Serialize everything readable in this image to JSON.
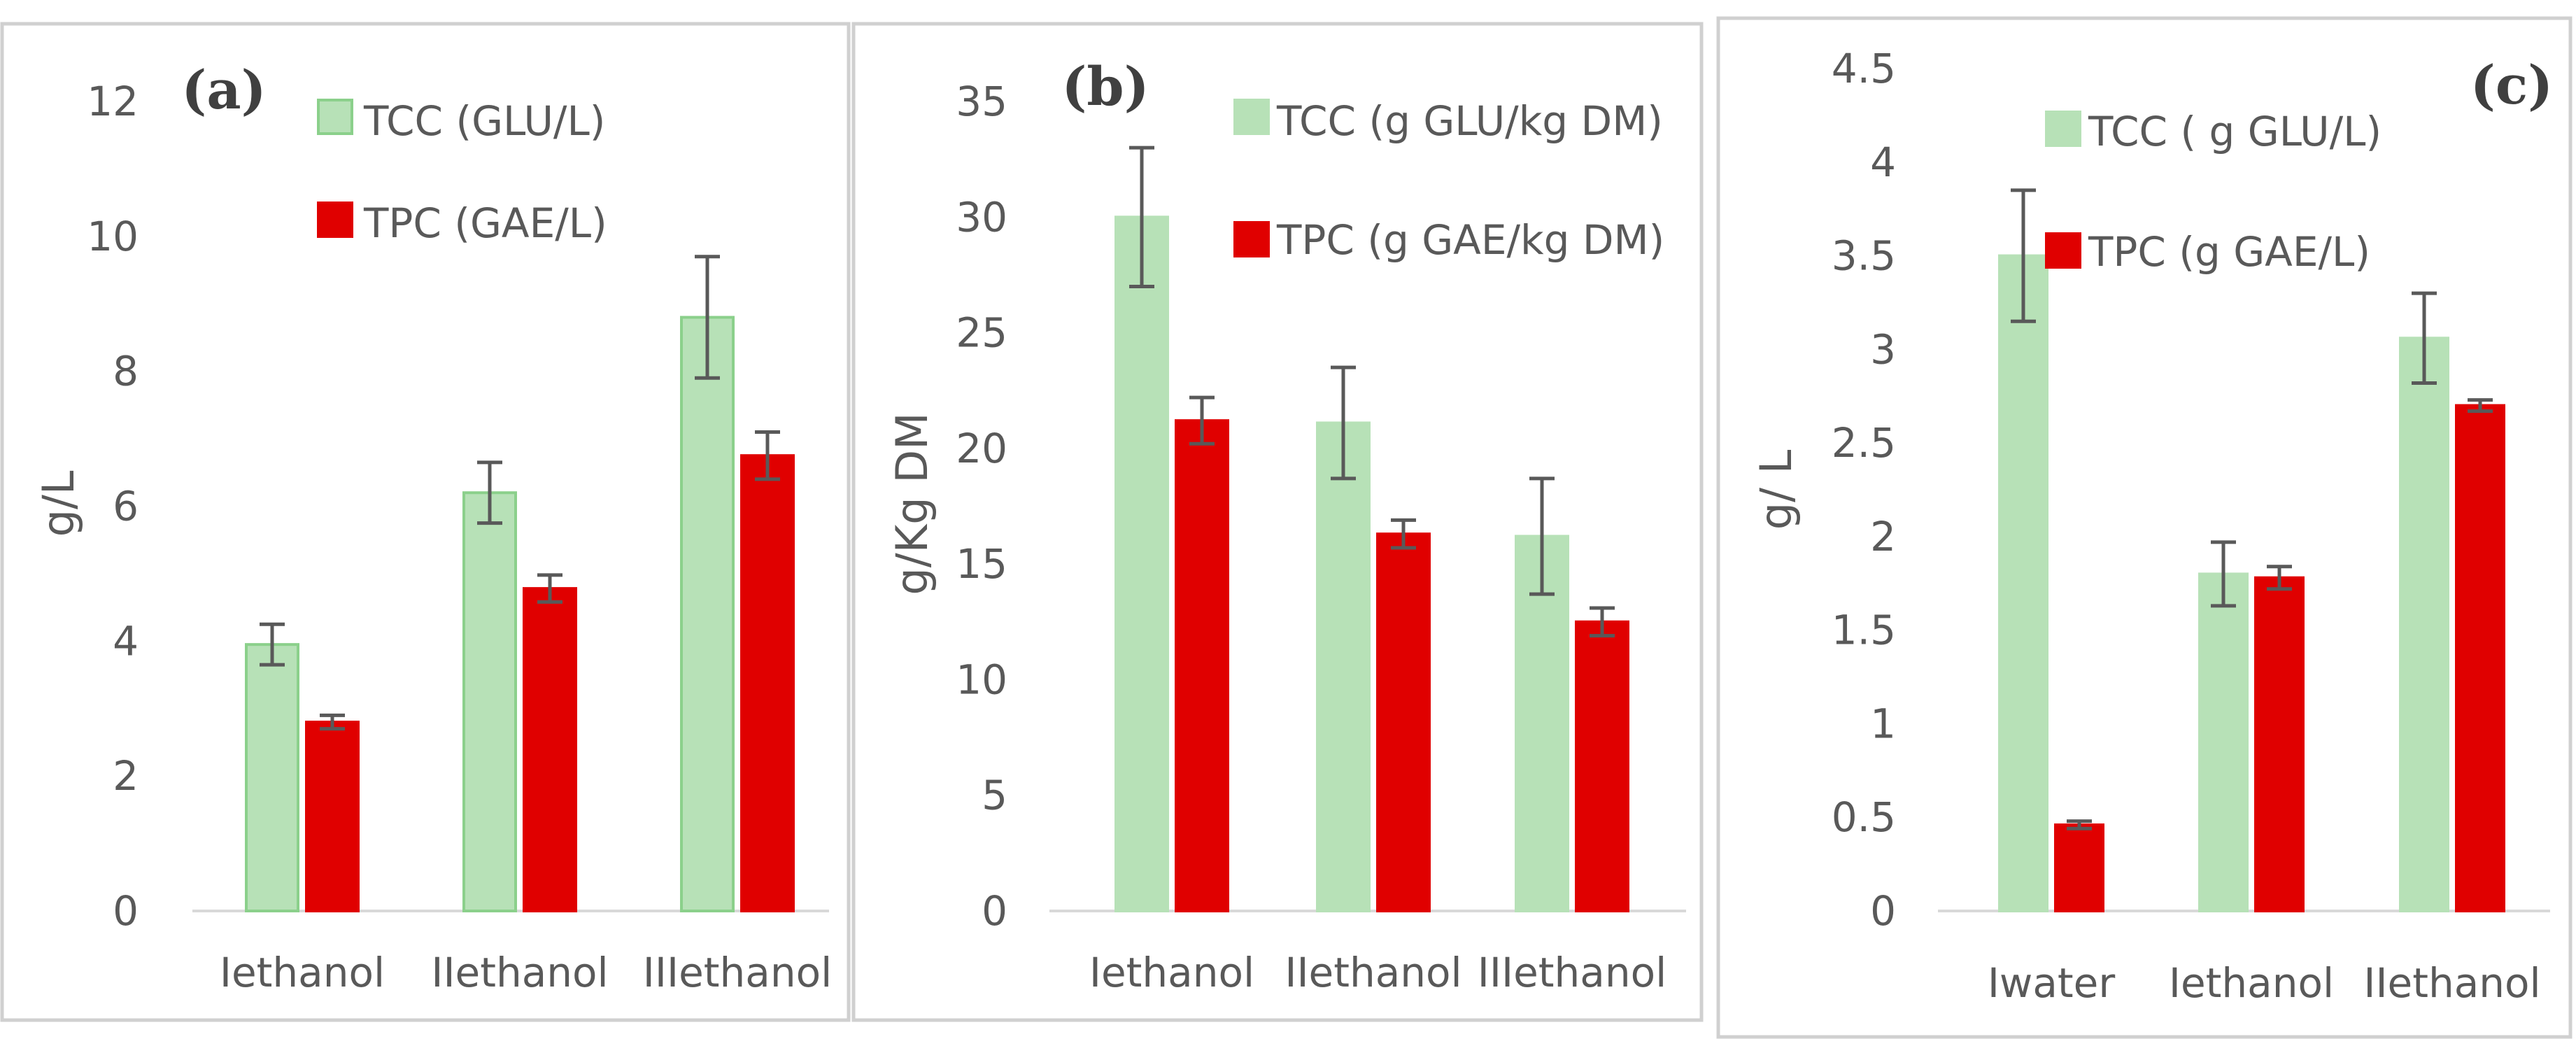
{
  "chart_data": [
    {
      "type": "bar",
      "panel_label": "(a)",
      "ylabel": "g/L",
      "ylim": [
        0,
        12
      ],
      "yticks": [
        "0",
        "2",
        "4",
        "6",
        "8",
        "10",
        "12"
      ],
      "categories": [
        "Iethanol",
        "IIethanol",
        "IIIethanol"
      ],
      "series": [
        {
          "name": "TCC (GLU/L)",
          "values": [
            3.95,
            6.2,
            8.8
          ],
          "errors": [
            0.3,
            0.45,
            0.9
          ],
          "color": "#b7e1b7",
          "edge": "#8bd08b"
        },
        {
          "name": "TPC (GAE/L)",
          "values": [
            2.8,
            4.78,
            6.75
          ],
          "errors": [
            0.1,
            0.2,
            0.35
          ],
          "color": "#e00000",
          "edge": "#e00000"
        }
      ]
    },
    {
      "type": "bar",
      "panel_label": "(b)",
      "ylabel": "g/Kg DM",
      "ylim": [
        0,
        35
      ],
      "yticks": [
        "0",
        "5",
        "10",
        "15",
        "20",
        "25",
        "30",
        "35"
      ],
      "categories": [
        "Iethanol",
        "IIethanol",
        "IIIethanol"
      ],
      "series": [
        {
          "name": "TCC (g GLU/kg DM)",
          "values": [
            30,
            21.1,
            16.2
          ],
          "errors": [
            3.0,
            2.4,
            2.5
          ],
          "color": "#b7e1b7",
          "edge": "#b7e1b7"
        },
        {
          "name": "TPC (g GAE/kg DM)",
          "values": [
            21.2,
            16.3,
            12.5
          ],
          "errors": [
            1.0,
            0.6,
            0.6
          ],
          "color": "#e00000",
          "edge": "#e00000"
        }
      ]
    },
    {
      "type": "bar",
      "panel_label": "(c)",
      "ylabel": "g/ L",
      "ylim": [
        0,
        4.5
      ],
      "yticks": [
        "0",
        "0.5",
        "1",
        "1.5",
        "2",
        "2.5",
        "3",
        "3.5",
        "4",
        "4.5"
      ],
      "categories": [
        "Iwater",
        "Iethanol",
        "IIethanol"
      ],
      "series": [
        {
          "name": "TCC ( g GLU/L)",
          "values": [
            3.5,
            1.8,
            3.06
          ],
          "errors": [
            0.35,
            0.17,
            0.24
          ],
          "color": "#b7e1b7",
          "edge": "#b7e1b7"
        },
        {
          "name": "TPC (g GAE/L)",
          "values": [
            0.46,
            1.78,
            2.7
          ],
          "errors": [
            0.02,
            0.06,
            0.03
          ],
          "color": "#e00000",
          "edge": "#e00000"
        }
      ]
    }
  ]
}
